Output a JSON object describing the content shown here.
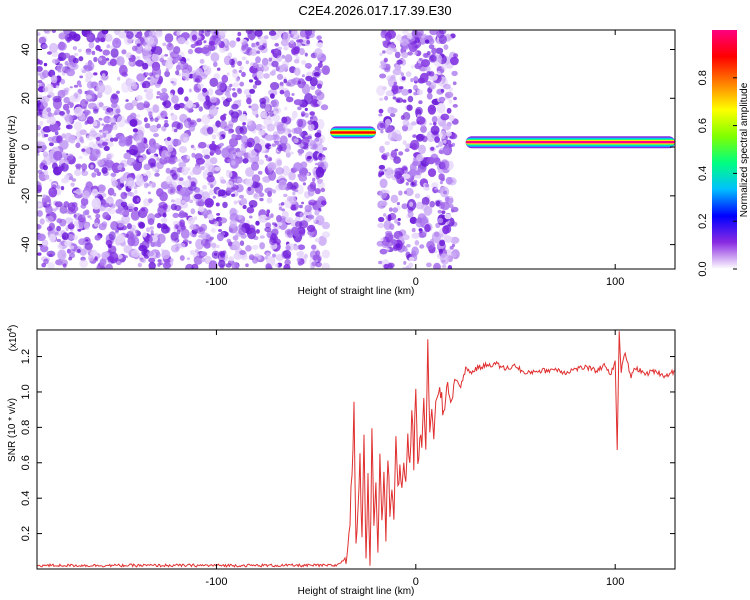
{
  "title": "C2E4.2026.017.17.39.E30",
  "chart_data": [
    {
      "type": "heatmap",
      "xlabel": "Height of straight line (km)",
      "ylabel": "Frequency (Hz)",
      "xlim": [
        -190,
        130
      ],
      "ylim": [
        -50,
        48
      ],
      "x_ticks": [
        -100,
        0,
        100
      ],
      "x_tick_labels": [
        "-100",
        "0",
        "100"
      ],
      "y_ticks": [
        -40,
        -20,
        0,
        20,
        40
      ],
      "y_tick_labels": [
        "-40",
        "-20",
        "0",
        "20",
        "40"
      ],
      "grid": false,
      "colorbar": {
        "label": "Normalized spectral amplitude",
        "range": [
          0,
          1
        ],
        "ticks": [
          0.0,
          0.2,
          0.4,
          0.6,
          0.8
        ],
        "tick_labels": [
          "0.0",
          "0.2",
          "0.4",
          "0.6",
          "0.8"
        ],
        "colors": [
          "#ffffff",
          "#8a2be2",
          "#0000ff",
          "#00bfff",
          "#00ff80",
          "#80ff00",
          "#ffff00",
          "#ff8000",
          "#ff0000",
          "#ff0080"
        ]
      },
      "noise_regions": [
        {
          "x": [
            -190,
            -45
          ],
          "amplitude": 0.12
        },
        {
          "x": [
            -18,
            20
          ],
          "amplitude": 0.12
        }
      ],
      "ridges": [
        {
          "x": [
            -43,
            -20
          ],
          "freq": 6,
          "amplitude": 0.9
        },
        {
          "x": [
            25,
            130
          ],
          "freq": 2,
          "amplitude": 0.95
        }
      ]
    },
    {
      "type": "line",
      "xlabel": "Height of straight line (km)",
      "ylabel": "SNR (10 * v/v)",
      "y_multiplier": "(x10",
      "y_multiplier_exp": "4",
      "xlim": [
        -190,
        130
      ],
      "ylim": [
        0,
        1.35
      ],
      "x_ticks": [
        -100,
        0,
        100
      ],
      "x_tick_labels": [
        "-100",
        "0",
        "100"
      ],
      "y_ticks": [
        0.2,
        0.4,
        0.6,
        0.8,
        1.0,
        1.2
      ],
      "y_tick_labels": [
        "0.2",
        "0.4",
        "0.6",
        "0.8",
        "1.0",
        "1.2"
      ],
      "grid": false,
      "line_color": "#e03030",
      "series": [
        {
          "x": [
            -190,
            -150,
            -100,
            -60,
            -40,
            -35,
            -33,
            -31,
            -30,
            -28,
            -27,
            -26,
            -25,
            -24,
            -23,
            -22,
            -21,
            -20,
            -19,
            -18,
            -17,
            -16,
            -15,
            -14,
            -13,
            -12,
            -11,
            -10,
            -9,
            -8,
            -7,
            -6,
            -5,
            -4,
            -3,
            -2,
            -1,
            0,
            1,
            2,
            3,
            4,
            5,
            6,
            7,
            8,
            9,
            10,
            12,
            14,
            16,
            18,
            20,
            22,
            25,
            28,
            30,
            35,
            40,
            45,
            50,
            55,
            60,
            65,
            70,
            75,
            80,
            85,
            90,
            95,
            98,
            100,
            101,
            102,
            103,
            105,
            108,
            110,
            115,
            120,
            125,
            130
          ],
          "values": [
            0.02,
            0.02,
            0.02,
            0.02,
            0.02,
            0.06,
            0.25,
            0.9,
            0.15,
            0.6,
            0.2,
            0.7,
            0.1,
            0.5,
            0.05,
            0.75,
            0.3,
            0.5,
            0.1,
            0.7,
            0.3,
            0.55,
            0.2,
            0.6,
            0.35,
            0.5,
            0.3,
            0.75,
            0.45,
            0.55,
            0.4,
            0.6,
            0.5,
            0.8,
            0.55,
            0.9,
            0.6,
            1.05,
            0.6,
            0.75,
            0.65,
            1.0,
            0.7,
            1.24,
            0.72,
            0.95,
            0.78,
            0.9,
            1.0,
            0.88,
            1.05,
            0.95,
            1.08,
            1.02,
            1.13,
            1.11,
            1.13,
            1.15,
            1.16,
            1.13,
            1.15,
            1.1,
            1.12,
            1.12,
            1.13,
            1.11,
            1.13,
            1.14,
            1.12,
            1.15,
            1.1,
            1.18,
            0.68,
            1.33,
            1.12,
            1.22,
            1.08,
            1.14,
            1.1,
            1.12,
            1.09,
            1.12
          ]
        }
      ]
    }
  ]
}
